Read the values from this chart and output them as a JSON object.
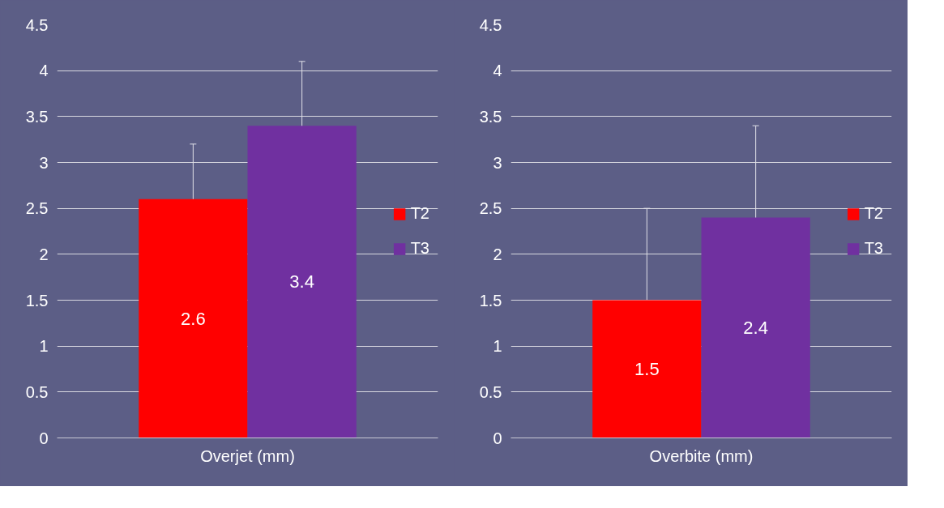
{
  "chart_data": [
    {
      "type": "bar",
      "categories": [
        "Overjet (mm)"
      ],
      "series": [
        {
          "name": "T2",
          "color": "#ff0000",
          "values": [
            2.6
          ],
          "errors": [
            0.6
          ]
        },
        {
          "name": "T3",
          "color": "#7030a0",
          "values": [
            3.4
          ],
          "errors": [
            0.7
          ]
        }
      ],
      "ylim": [
        0,
        4.5
      ],
      "yticks": [
        0,
        0.5,
        1,
        1.5,
        2,
        2.5,
        3,
        3.5,
        4,
        4.5
      ],
      "grid": "y",
      "legend": "right",
      "data_labels": true
    },
    {
      "type": "bar",
      "categories": [
        "Overbite (mm)"
      ],
      "series": [
        {
          "name": "T2",
          "color": "#ff0000",
          "values": [
            1.5
          ],
          "errors": [
            1.0
          ]
        },
        {
          "name": "T3",
          "color": "#7030a0",
          "values": [
            2.4
          ],
          "errors": [
            1.0
          ]
        }
      ],
      "ylim": [
        0,
        4.5
      ],
      "yticks": [
        0,
        0.5,
        1,
        1.5,
        2,
        2.5,
        3,
        3.5,
        4,
        4.5
      ],
      "grid": "y",
      "legend": "right",
      "data_labels": true
    }
  ]
}
